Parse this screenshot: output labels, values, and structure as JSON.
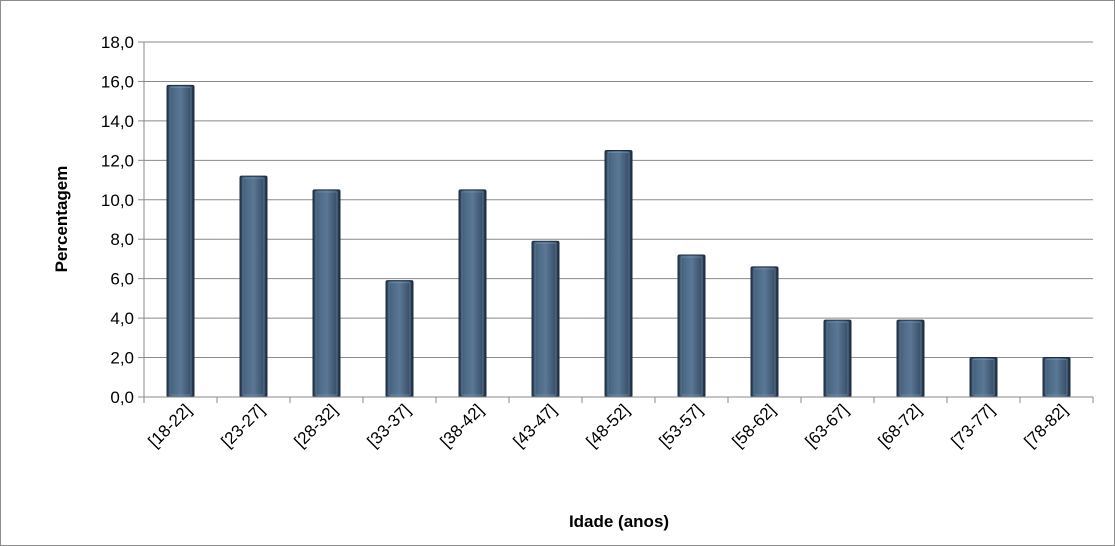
{
  "chart_data": {
    "type": "bar",
    "title": "",
    "xlabel": "Idade (anos)",
    "ylabel": "Percentagem",
    "ylim": [
      0,
      18
    ],
    "ytick_step": 2,
    "ytick_labels": [
      "0,0",
      "2,0",
      "4,0",
      "6,0",
      "8,0",
      "10,0",
      "12,0",
      "14,0",
      "16,0",
      "18,0"
    ],
    "grid": true,
    "legend": "none",
    "bar_color": "#3e5670",
    "categories": [
      "[18-22]",
      "[23-27]",
      "[28-32]",
      "[33-37]",
      "[38-42]",
      "[43-47]",
      "[48-52]",
      "[53-57]",
      "[58-62]",
      "[63-67]",
      "[68-72]",
      "[73-77]",
      "[78-82]"
    ],
    "values": [
      15.8,
      11.2,
      10.5,
      5.9,
      10.5,
      7.9,
      12.5,
      7.2,
      6.6,
      3.9,
      3.9,
      2.0,
      2.0
    ]
  }
}
